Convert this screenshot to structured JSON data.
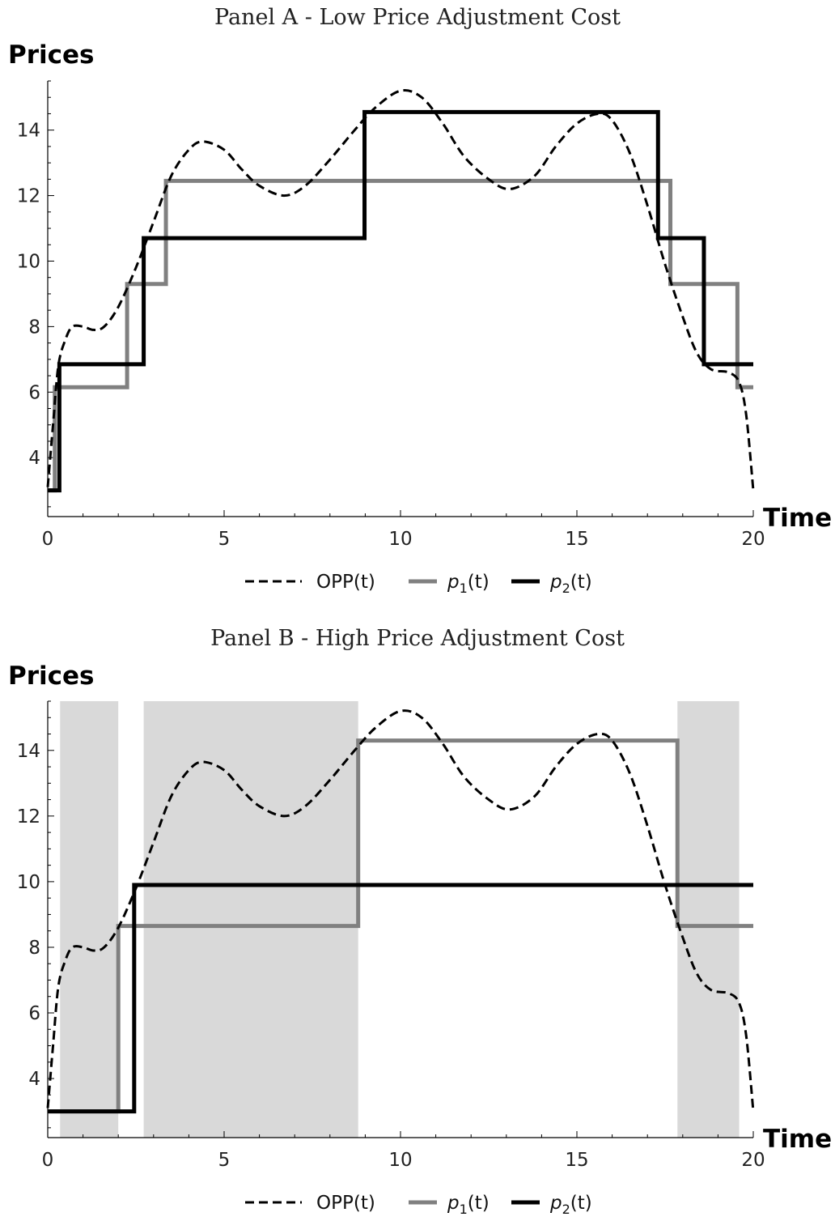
{
  "chart_data": [
    {
      "type": "line",
      "title": "Panel A - Low Price Adjustment Cost",
      "xlabel": "Time",
      "ylabel": "Prices",
      "xlim": [
        0,
        20
      ],
      "ylim": [
        2.2,
        15.5
      ],
      "x_ticks": [
        0,
        5,
        10,
        15,
        20
      ],
      "y_ticks": [
        4,
        6,
        8,
        10,
        12,
        14
      ],
      "grid": false,
      "legend_position": "bottom",
      "legend": [
        "OPP(t)",
        "p1(t)",
        "p2(t)"
      ],
      "series": [
        {
          "name": "OPP(t)",
          "style": "dashed",
          "color": "#000000",
          "x": [
            0,
            0.15,
            0.3,
            0.5,
            0.7,
            1.0,
            1.3,
            1.6,
            2.0,
            2.5,
            3.0,
            3.5,
            4.0,
            4.4,
            5.0,
            5.5,
            6.0,
            6.7,
            7.3,
            8.0,
            8.7,
            9.3,
            10.0,
            10.6,
            11.2,
            11.8,
            12.5,
            13.1,
            13.8,
            14.4,
            15.0,
            15.6,
            16.0,
            16.5,
            17.0,
            17.5,
            18.0,
            18.4,
            18.8,
            19.3,
            19.6,
            19.8,
            20.0
          ],
          "y": [
            3.1,
            5.0,
            6.8,
            7.6,
            8.0,
            8.0,
            7.9,
            8.0,
            8.6,
            9.8,
            11.2,
            12.6,
            13.4,
            13.65,
            13.4,
            12.8,
            12.3,
            12.0,
            12.3,
            13.1,
            14.0,
            14.7,
            15.2,
            15.0,
            14.2,
            13.2,
            12.5,
            12.2,
            12.6,
            13.5,
            14.2,
            14.5,
            14.3,
            13.3,
            11.7,
            9.9,
            8.3,
            7.2,
            6.7,
            6.6,
            6.3,
            5.3,
            3.0
          ]
        },
        {
          "name": "p1(t)",
          "style": "step",
          "color": "#808080",
          "x": [
            0,
            0.2,
            0.2,
            2.25,
            2.25,
            3.35,
            3.35,
            17.65,
            17.65,
            19.55,
            19.55,
            20
          ],
          "y": [
            3.0,
            3.0,
            6.15,
            6.15,
            9.3,
            9.3,
            12.45,
            12.45,
            9.3,
            9.3,
            6.15,
            6.15
          ]
        },
        {
          "name": "p2(t)",
          "style": "step",
          "color": "#000000",
          "x": [
            0,
            0.33,
            0.33,
            2.72,
            2.72,
            8.98,
            8.98,
            17.3,
            17.3,
            18.6,
            18.6,
            20
          ],
          "y": [
            3.0,
            3.0,
            6.85,
            6.85,
            10.7,
            10.7,
            14.55,
            14.55,
            10.7,
            10.7,
            6.85,
            6.85
          ]
        }
      ],
      "shaded_regions": []
    },
    {
      "type": "line",
      "title": "Panel B - High Price Adjustment Cost",
      "xlabel": "Time",
      "ylabel": "Prices",
      "xlim": [
        0,
        20
      ],
      "ylim": [
        2.2,
        15.5
      ],
      "x_ticks": [
        0,
        5,
        10,
        15,
        20
      ],
      "y_ticks": [
        4,
        6,
        8,
        10,
        12,
        14
      ],
      "grid": false,
      "legend_position": "bottom",
      "legend": [
        "OPP(t)",
        "p1(t)",
        "p2(t)"
      ],
      "series": [
        {
          "name": "OPP(t)",
          "style": "dashed",
          "color": "#000000",
          "x": [
            0,
            0.15,
            0.3,
            0.5,
            0.7,
            1.0,
            1.3,
            1.6,
            2.0,
            2.5,
            3.0,
            3.5,
            4.0,
            4.4,
            5.0,
            5.5,
            6.0,
            6.7,
            7.3,
            8.0,
            8.7,
            9.3,
            10.0,
            10.6,
            11.2,
            11.8,
            12.5,
            13.1,
            13.8,
            14.4,
            15.0,
            15.6,
            16.0,
            16.5,
            17.0,
            17.5,
            18.0,
            18.4,
            18.8,
            19.3,
            19.6,
            19.8,
            20.0
          ],
          "y": [
            3.1,
            5.0,
            6.8,
            7.6,
            8.0,
            8.0,
            7.9,
            8.0,
            8.6,
            9.8,
            11.2,
            12.6,
            13.4,
            13.65,
            13.4,
            12.8,
            12.3,
            12.0,
            12.3,
            13.1,
            14.0,
            14.7,
            15.2,
            15.0,
            14.2,
            13.2,
            12.5,
            12.2,
            12.6,
            13.5,
            14.2,
            14.5,
            14.3,
            13.3,
            11.7,
            9.9,
            8.3,
            7.2,
            6.7,
            6.6,
            6.3,
            5.3,
            3.0
          ]
        },
        {
          "name": "p1(t)",
          "style": "step",
          "color": "#808080",
          "x": [
            0,
            2.0,
            2.0,
            8.8,
            8.8,
            17.85,
            17.85,
            20
          ],
          "y": [
            3.0,
            3.0,
            8.65,
            8.65,
            14.3,
            14.3,
            8.65,
            8.65
          ]
        },
        {
          "name": "p2(t)",
          "style": "step",
          "color": "#000000",
          "x": [
            0,
            2.45,
            2.45,
            20
          ],
          "y": [
            3.0,
            3.0,
            9.9,
            9.9
          ]
        }
      ],
      "shaded_regions": [
        [
          0.35,
          2.0
        ],
        [
          2.72,
          8.8
        ],
        [
          17.85,
          19.6
        ]
      ]
    }
  ]
}
